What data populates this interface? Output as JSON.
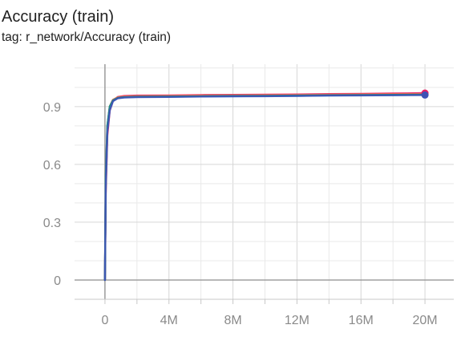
{
  "card": {
    "title": "Accuracy (train)",
    "subtitle": "tag: r_network/Accuracy (train)"
  },
  "chart_data": {
    "type": "line",
    "title": "Accuracy (train)",
    "subtitle": "tag: r_network/Accuracy (train)",
    "xlabel": "",
    "ylabel": "",
    "xlim": [
      -1900000,
      21800000
    ],
    "ylim": [
      -0.1,
      1.12
    ],
    "x_ticks": [
      0,
      4000000,
      8000000,
      12000000,
      16000000,
      20000000
    ],
    "x_tick_labels": [
      "0",
      "4M",
      "8M",
      "12M",
      "16M",
      "20M"
    ],
    "y_ticks": [
      0,
      0.3,
      0.6,
      0.9
    ],
    "y_tick_labels": [
      "0",
      "0.3",
      "0.6",
      "0.9"
    ],
    "grid": true,
    "legend": "none",
    "series": [
      {
        "color": "#5f6368",
        "end_marker": true,
        "x": [
          0,
          50000,
          150000,
          300000,
          500000,
          800000,
          1200000,
          2000000,
          4000000,
          6000000,
          8000000,
          10000000,
          12000000,
          14000000,
          16000000,
          18000000,
          20000000
        ],
        "y": [
          0.0,
          0.55,
          0.8,
          0.9,
          0.935,
          0.947,
          0.95,
          0.952,
          0.953,
          0.955,
          0.956,
          0.957,
          0.958,
          0.96,
          0.961,
          0.962,
          0.963
        ]
      },
      {
        "color": "#e91e63",
        "end_marker": true,
        "x": [
          0,
          50000,
          150000,
          300000,
          500000,
          800000,
          1200000,
          2000000,
          4000000,
          6000000,
          8000000,
          10000000,
          12000000,
          14000000,
          16000000,
          18000000,
          20000000
        ],
        "y": [
          0.0,
          0.45,
          0.75,
          0.88,
          0.93,
          0.95,
          0.955,
          0.957,
          0.958,
          0.96,
          0.961,
          0.962,
          0.963,
          0.965,
          0.966,
          0.968,
          0.97
        ]
      },
      {
        "color": "#03a9f4",
        "end_marker": false,
        "x": [
          0,
          50000,
          150000,
          300000,
          500000,
          800000,
          1200000,
          2000000,
          4000000,
          6000000,
          8000000,
          10000000,
          12000000,
          14000000,
          16000000,
          18000000,
          20000000
        ],
        "y": [
          0.0,
          0.5,
          0.78,
          0.89,
          0.93,
          0.945,
          0.948,
          0.95,
          0.951,
          0.953,
          0.954,
          0.955,
          0.956,
          0.958,
          0.959,
          0.96,
          0.961
        ]
      },
      {
        "color": "#ff7043",
        "end_marker": false,
        "x": [
          0,
          50000,
          150000,
          300000,
          500000,
          800000,
          1200000,
          2000000,
          4000000,
          6000000,
          8000000,
          10000000,
          12000000,
          14000000,
          16000000,
          18000000,
          20000000
        ],
        "y": [
          0.0,
          0.5,
          0.79,
          0.9,
          0.935,
          0.948,
          0.952,
          0.954,
          0.955,
          0.957,
          0.958,
          0.959,
          0.96,
          0.962,
          0.963,
          0.964,
          0.965
        ]
      },
      {
        "color": "#009688",
        "end_marker": false,
        "x": [
          0,
          50000,
          150000,
          300000,
          500000,
          800000,
          1200000,
          2000000,
          4000000,
          6000000,
          8000000,
          10000000,
          12000000,
          14000000,
          16000000,
          18000000,
          20000000
        ],
        "y": [
          0.0,
          0.52,
          0.8,
          0.9,
          0.932,
          0.945,
          0.949,
          0.951,
          0.952,
          0.954,
          0.955,
          0.956,
          0.957,
          0.959,
          0.96,
          0.961,
          0.962
        ]
      },
      {
        "color": "#3f51b5",
        "end_marker": true,
        "x": [
          0,
          50000,
          150000,
          300000,
          500000,
          800000,
          1200000,
          2000000,
          4000000,
          6000000,
          8000000,
          10000000,
          12000000,
          14000000,
          16000000,
          18000000,
          20000000
        ],
        "y": [
          0.0,
          0.48,
          0.77,
          0.88,
          0.928,
          0.943,
          0.947,
          0.949,
          0.95,
          0.952,
          0.953,
          0.954,
          0.955,
          0.957,
          0.958,
          0.959,
          0.96
        ]
      }
    ]
  }
}
